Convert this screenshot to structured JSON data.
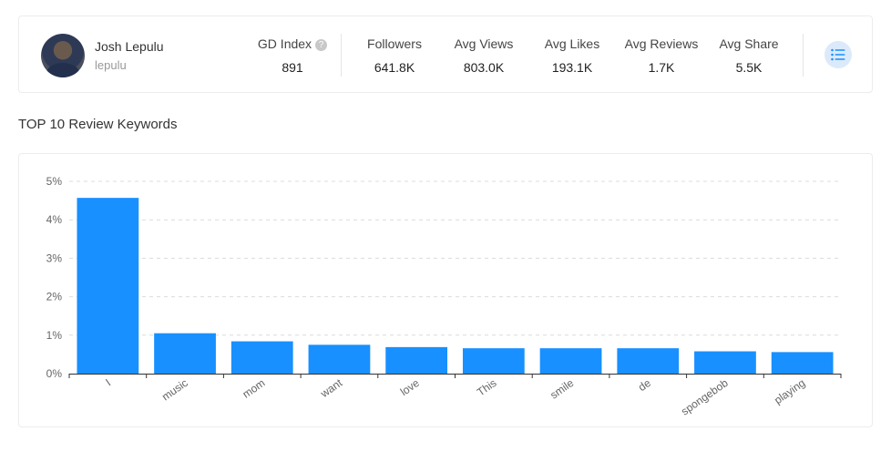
{
  "profile": {
    "name": "Josh Lepulu",
    "handle": "lepulu",
    "stats": [
      {
        "label": "GD Index",
        "value": "891",
        "help": "?"
      },
      {
        "label": "Followers",
        "value": "641.8K"
      },
      {
        "label": "Avg Views",
        "value": "803.0K"
      },
      {
        "label": "Avg Likes",
        "value": "193.1K"
      },
      {
        "label": "Avg Reviews",
        "value": "1.7K"
      },
      {
        "label": "Avg Share",
        "value": "5.5K"
      }
    ]
  },
  "section": {
    "title": "TOP 10 Review Keywords"
  },
  "chart_data": {
    "type": "bar",
    "categories": [
      "I",
      "music",
      "mom",
      "want",
      "love",
      "This",
      "smile",
      "de",
      "spongebob",
      "playing"
    ],
    "values": [
      4.57,
      1.05,
      0.84,
      0.75,
      0.69,
      0.66,
      0.66,
      0.66,
      0.58,
      0.56
    ],
    "ylim": [
      0,
      5
    ],
    "yticks": [
      "0%",
      "1%",
      "2%",
      "3%",
      "4%",
      "5%"
    ],
    "grid": true,
    "bar_color": "#1890ff"
  }
}
